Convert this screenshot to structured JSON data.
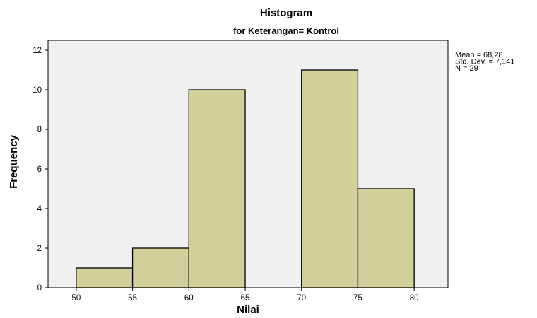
{
  "chart_data": {
    "type": "histogram",
    "title": "Histogram",
    "subtitle": "for Keterangan= Kontrol",
    "xlabel": "Nilai",
    "ylabel": "Frequency",
    "xlim": [
      47.5,
      83
    ],
    "ylim": [
      0,
      12.5
    ],
    "x_ticks": [
      "50",
      "55",
      "60",
      "65",
      "70",
      "75",
      "80"
    ],
    "y_ticks": [
      "0",
      "2",
      "4",
      "6",
      "8",
      "10",
      "12"
    ],
    "bins": [
      {
        "start": 50,
        "end": 55,
        "count": 1
      },
      {
        "start": 55,
        "end": 60,
        "count": 2
      },
      {
        "start": 60,
        "end": 65,
        "count": 10
      },
      {
        "start": 65,
        "end": 70,
        "count": 0
      },
      {
        "start": 70,
        "end": 75,
        "count": 11
      },
      {
        "start": 75,
        "end": 80,
        "count": 5
      }
    ],
    "stats": [
      "Mean = 68,28",
      "Std. Dev. = 7,141",
      "N = 29"
    ],
    "bar_color": "#d3cf9b",
    "plot_background": "#f0f0f0",
    "grid": false
  }
}
